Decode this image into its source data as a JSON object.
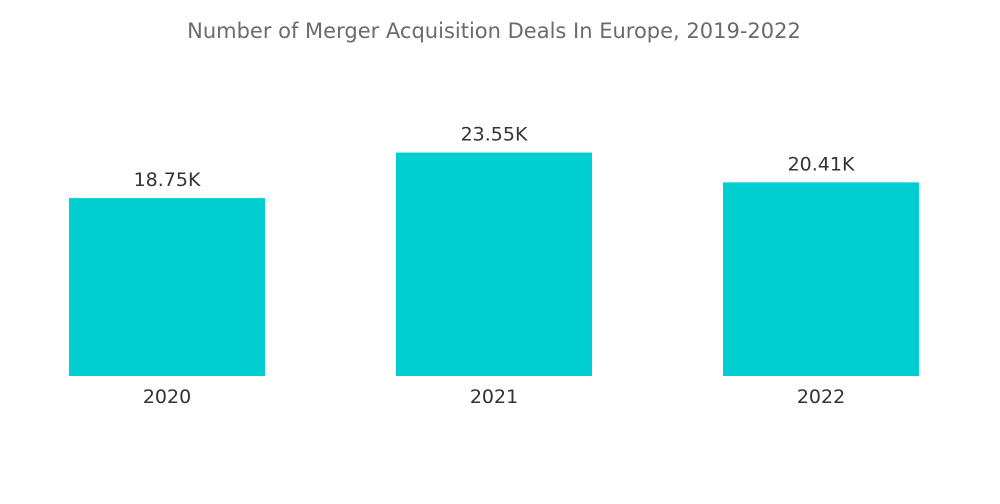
{
  "chart_data": {
    "type": "bar",
    "title": "Number of Merger  Acquisition Deals In Europe, 2019-2022",
    "categories": [
      "2020",
      "2021",
      "2022"
    ],
    "values": [
      18.75,
      23.55,
      20.41
    ],
    "data_labels": [
      "18.75K",
      "23.55K",
      "20.41K"
    ],
    "unit": "K",
    "xlabel": "",
    "ylabel": "",
    "ylim": [
      0,
      26.35
    ],
    "grid": false,
    "legend": "none",
    "colors": {
      "bar": "#00CED1",
      "title": "#6b6b6b",
      "label": "#333333"
    }
  }
}
